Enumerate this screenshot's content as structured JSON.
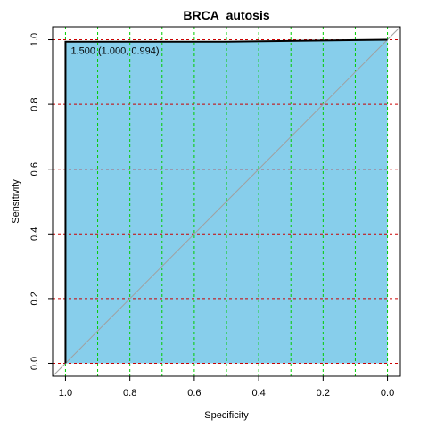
{
  "chart_data": {
    "type": "line",
    "title": "BRCA_autosis",
    "xlabel": "Specificity",
    "ylabel": "Sensitivity",
    "xlim": [
      1.04,
      -0.04
    ],
    "ylim": [
      -0.04,
      1.04
    ],
    "x_ticks": [
      "1.0",
      "0.8",
      "0.6",
      "0.4",
      "0.2",
      "0.0"
    ],
    "x_tick_values": [
      1.0,
      0.8,
      0.6,
      0.4,
      0.2,
      0.0
    ],
    "y_ticks": [
      "0.0",
      "0.2",
      "0.4",
      "0.6",
      "0.8",
      "1.0"
    ],
    "y_tick_values": [
      0.0,
      0.2,
      0.4,
      0.6,
      0.8,
      1.0
    ],
    "x_reversed": true,
    "grid": true,
    "grid_x_values": [
      1.0,
      0.9,
      0.8,
      0.7,
      0.6,
      0.5,
      0.4,
      0.3,
      0.2,
      0.1,
      0.0
    ],
    "grid_y_values": [
      0.0,
      0.2,
      0.4,
      0.6,
      0.8,
      1.0
    ],
    "grid_x_color": "#00cc00",
    "grid_y_color": "#cc0000",
    "auc_fill_color": "#87ceeb",
    "diagonal_color": "#a0a0a0",
    "roc_color": "#000000",
    "curve": {
      "specificity": [
        1.0,
        1.0,
        0.5,
        0.0,
        0.0
      ],
      "sensitivity": [
        0.0,
        0.994,
        0.994,
        1.0,
        1.0
      ]
    },
    "best_threshold": {
      "label": "1.500 (1.000, 0.994)",
      "specificity": 1.0,
      "sensitivity": 0.994
    }
  }
}
